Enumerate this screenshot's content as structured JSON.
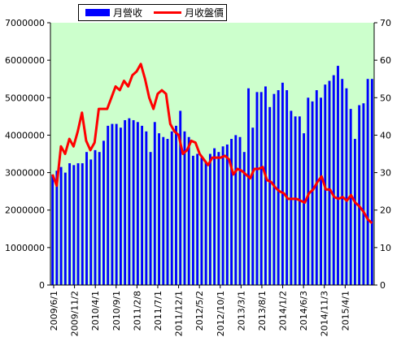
{
  "chart_data": {
    "type": "bar+line",
    "legend": {
      "placement": "top-left",
      "entries": [
        "月營收",
        "月收盤價"
      ]
    },
    "colors": {
      "plot_bg": "#ccffcc",
      "bar": "#0000ff",
      "line": "#ff0000"
    },
    "y_left": {
      "ylim": [
        0,
        7000000
      ],
      "ticks": [
        "0",
        "1000000",
        "2000000",
        "3000000",
        "4000000",
        "5000000",
        "6000000",
        "7000000"
      ]
    },
    "y_right": {
      "ylim": [
        0,
        70
      ],
      "ticks": [
        "0",
        "10",
        "20",
        "30",
        "40",
        "50",
        "60",
        "70"
      ]
    },
    "x_tick_labels": [
      "2009/6/1",
      "2009/11/2",
      "2010/4/1",
      "2010/9/1",
      "2011/2/8",
      "2011/7/1",
      "2011/12/1",
      "2012/5/2",
      "2012/10/1",
      "2013/3/1",
      "2013/8/1",
      "2014/1/2",
      "2014/6/3",
      "2014/11/3",
      "2015/4/1"
    ],
    "grid": false,
    "series": [
      {
        "name": "月營收",
        "type": "bar",
        "values": [
          2950000,
          3050000,
          3150000,
          3000000,
          3250000,
          3200000,
          3250000,
          3250000,
          3550000,
          3350000,
          3600000,
          3550000,
          3850000,
          4250000,
          4300000,
          4300000,
          4200000,
          4400000,
          4450000,
          4400000,
          4350000,
          4250000,
          4100000,
          3550000,
          4350000,
          4050000,
          3950000,
          3900000,
          4100000,
          4250000,
          4650000,
          4100000,
          3950000,
          3450000,
          3500000,
          3400000,
          3300000,
          3500000,
          3650000,
          3550000,
          3700000,
          3750000,
          3900000,
          4000000,
          3950000,
          3550000,
          5250000,
          4200000,
          5150000,
          5150000,
          5300000,
          4750000,
          5100000,
          5200000,
          5400000,
          5200000,
          4650000,
          4500000,
          4500000,
          4050000,
          5000000,
          4900000,
          5200000,
          5000000,
          5350000,
          5450000,
          5600000,
          5850000,
          5500000,
          5250000,
          4700000,
          3900000,
          4800000,
          4850000,
          5500000,
          5500000
        ]
      },
      {
        "name": "月收盤價",
        "type": "line",
        "values": [
          29.5,
          26.5,
          37,
          35,
          39,
          37,
          41,
          46,
          38.5,
          36,
          38,
          47,
          47,
          47,
          50,
          53,
          52,
          54.5,
          53,
          56,
          57,
          59,
          55,
          50,
          47,
          51,
          52,
          51,
          43,
          41,
          40,
          35,
          36,
          38.5,
          38,
          35,
          33.5,
          32,
          34,
          34,
          34,
          34.5,
          33.5,
          29.5,
          31,
          30.5,
          29.5,
          28.5,
          31,
          31,
          31.5,
          28,
          27.5,
          26,
          25,
          24.5,
          23,
          23,
          23,
          22.5,
          22,
          24.5,
          25.5,
          27.5,
          29,
          25.5,
          25.5,
          23.5,
          23,
          23.5,
          22.5,
          24,
          22,
          21,
          19.5,
          17.5,
          16.5
        ]
      }
    ]
  }
}
